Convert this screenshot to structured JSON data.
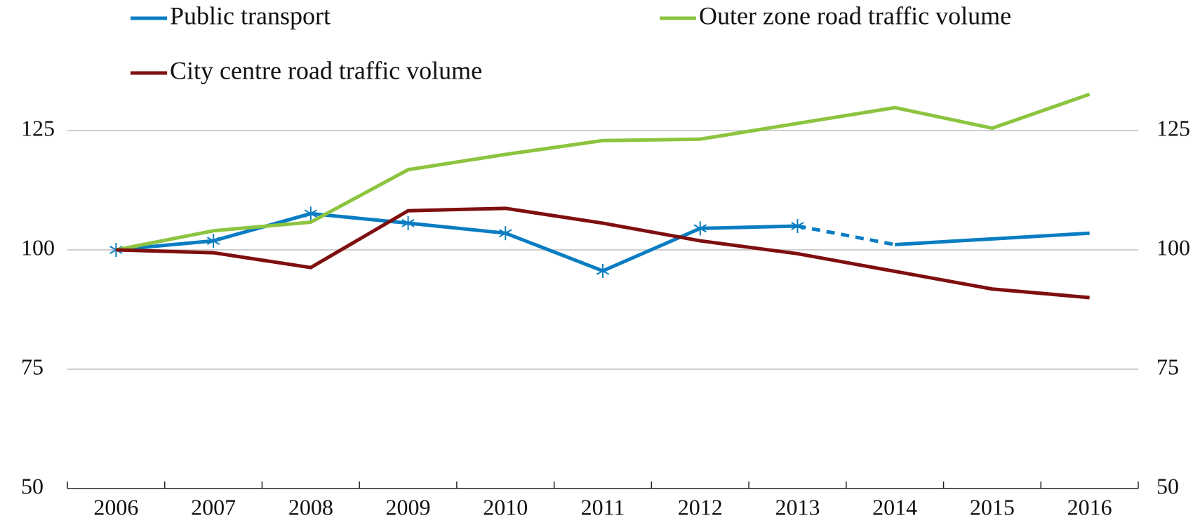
{
  "chart_data": {
    "type": "line",
    "categories": [
      "2006",
      "2007",
      "2008",
      "2009",
      "2010",
      "2011",
      "2012",
      "2013",
      "2014",
      "2015",
      "2016"
    ],
    "series": [
      {
        "name": "Public transport",
        "color": "#0a7dc2",
        "values": [
          100,
          101.9,
          107.6,
          105.6,
          103.5,
          95.6,
          104.5,
          105.0,
          101.1,
          102.3,
          103.5
        ],
        "markers": "asterisk",
        "marker_indices": [
          0,
          1,
          2,
          3,
          4,
          5,
          6,
          7
        ],
        "dashed_segments": [
          [
            7,
            8
          ]
        ]
      },
      {
        "name": "Outer zone road traffic volume",
        "color": "#8cc43f",
        "values": [
          100,
          104.0,
          105.8,
          116.8,
          120.0,
          122.9,
          123.2,
          126.5,
          129.8,
          125.5,
          132.6
        ]
      },
      {
        "name": "City centre road traffic volume",
        "color": "#7f0f0f",
        "values": [
          100,
          99.4,
          96.3,
          108.2,
          108.7,
          105.6,
          101.9,
          99.2,
          95.5,
          91.8,
          90.0
        ]
      }
    ],
    "ylim": [
      50,
      132.5
    ],
    "yticks": [
      50,
      75,
      100,
      125
    ],
    "grid": true,
    "right_axis_labels": true
  }
}
